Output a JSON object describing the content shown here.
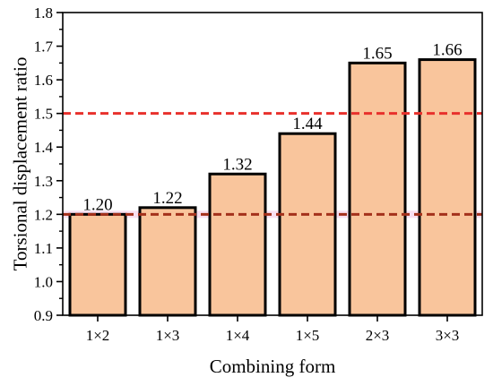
{
  "chart_data": {
    "type": "bar",
    "categories": [
      "1×2",
      "1×3",
      "1×4",
      "1×5",
      "2×3",
      "3×3"
    ],
    "values": [
      1.2,
      1.22,
      1.32,
      1.44,
      1.65,
      1.66
    ],
    "data_labels": [
      "1.20",
      "1.22",
      "1.32",
      "1.44",
      "1.65",
      "1.66"
    ],
    "xlabel": "Combining form",
    "ylabel": "Torsional displacement ratio",
    "ylim": [
      0.9,
      1.8
    ],
    "yticks": [
      0.9,
      1.0,
      1.1,
      1.2,
      1.3,
      1.4,
      1.5,
      1.6,
      1.7,
      1.8
    ],
    "ytick_labels": [
      "0.9",
      "1.0",
      "1.1",
      "1.2",
      "1.3",
      "1.4",
      "1.5",
      "1.6",
      "1.7",
      "1.8"
    ],
    "reference_lines": [
      {
        "y": 1.5,
        "color": "#e8312c",
        "style": "dashed"
      },
      {
        "y": 1.2,
        "color": "#a4311b",
        "style": "dashed"
      }
    ],
    "bar_fill": "#f9c59c",
    "bar_edge": "#000000",
    "grid": false,
    "legend": "none"
  }
}
